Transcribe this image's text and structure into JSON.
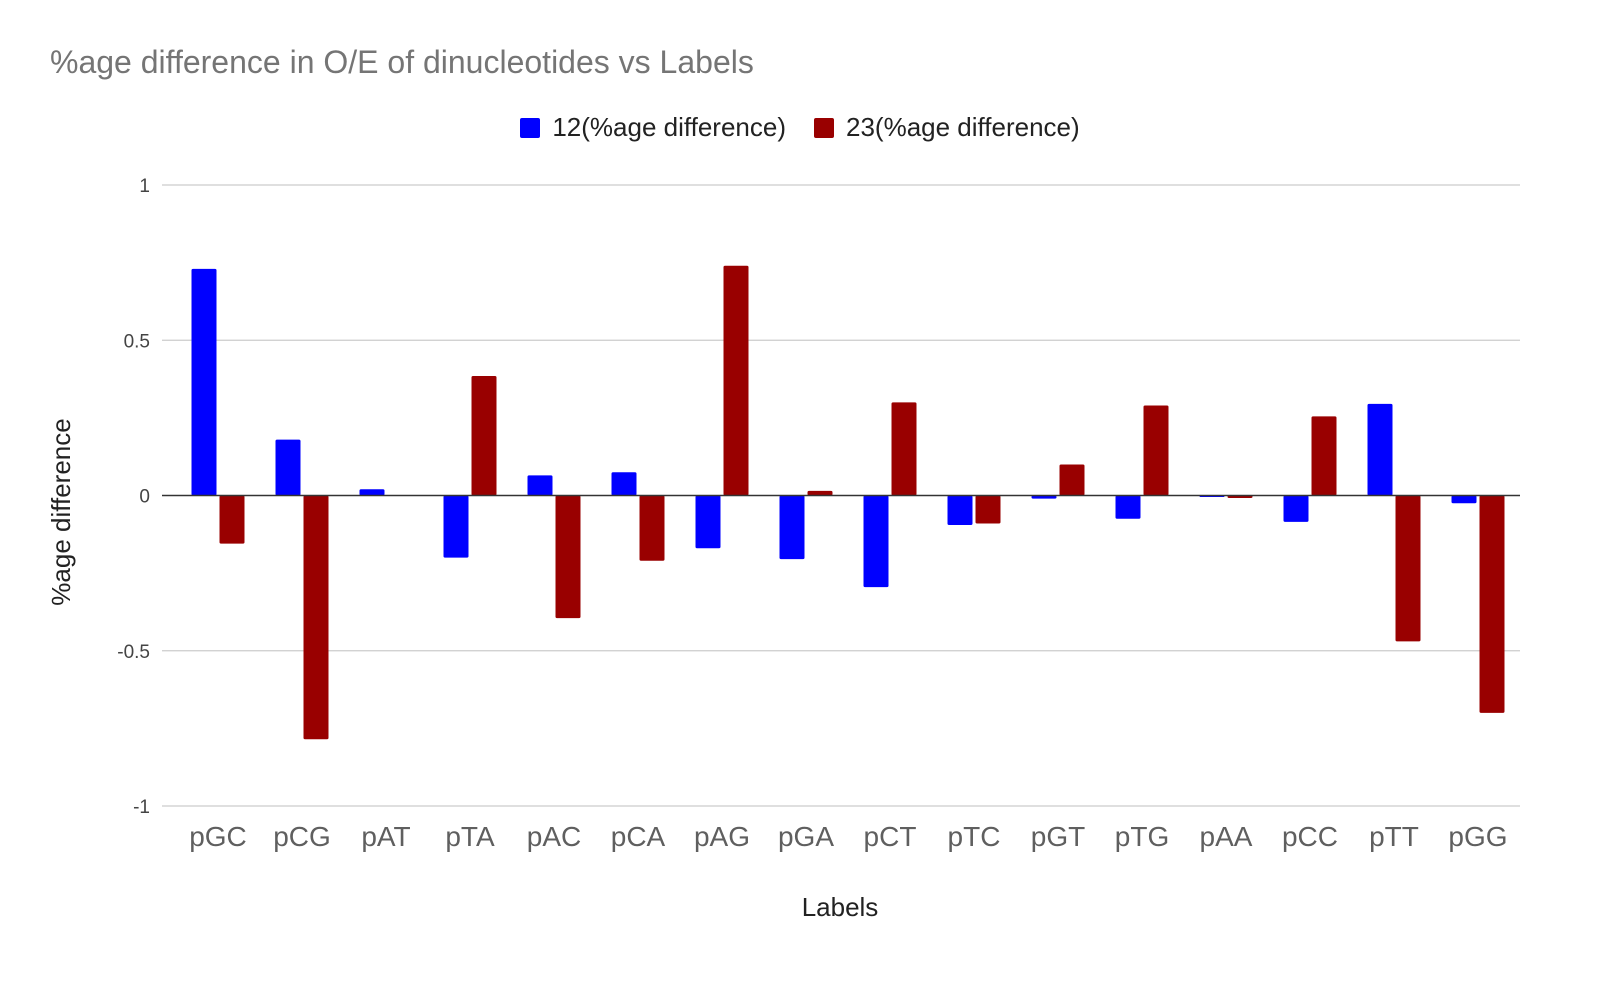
{
  "chart_data": {
    "type": "bar",
    "title": "%age difference in O/E of dinucleotides vs Labels",
    "xlabel": "Labels",
    "ylabel": "%age difference",
    "ylim": [
      -1,
      1
    ],
    "yticks": [
      "1",
      "0.5",
      "0",
      "-0.5",
      "-1"
    ],
    "grid": true,
    "legend_position": "top",
    "categories": [
      "pGC",
      "pCG",
      "pAT",
      "pTA",
      "pAC",
      "pCA",
      "pAG",
      "pGA",
      "pCT",
      "pTC",
      "pGT",
      "pTG",
      "pAA",
      "pCC",
      "pTT",
      "pGG"
    ],
    "series": [
      {
        "name": "12(%age difference)",
        "color": "#0000ff",
        "values": [
          0.73,
          0.18,
          0.02,
          -0.2,
          0.065,
          0.075,
          -0.17,
          -0.205,
          -0.295,
          -0.095,
          -0.01,
          -0.075,
          -0.003,
          -0.085,
          0.295,
          -0.025
        ]
      },
      {
        "name": "23(%age difference)",
        "color": "#990000",
        "values": [
          -0.155,
          -0.785,
          0.0,
          0.385,
          -0.395,
          -0.21,
          0.74,
          0.015,
          0.3,
          -0.09,
          0.1,
          0.29,
          -0.008,
          0.255,
          -0.47,
          -0.7
        ]
      }
    ]
  }
}
